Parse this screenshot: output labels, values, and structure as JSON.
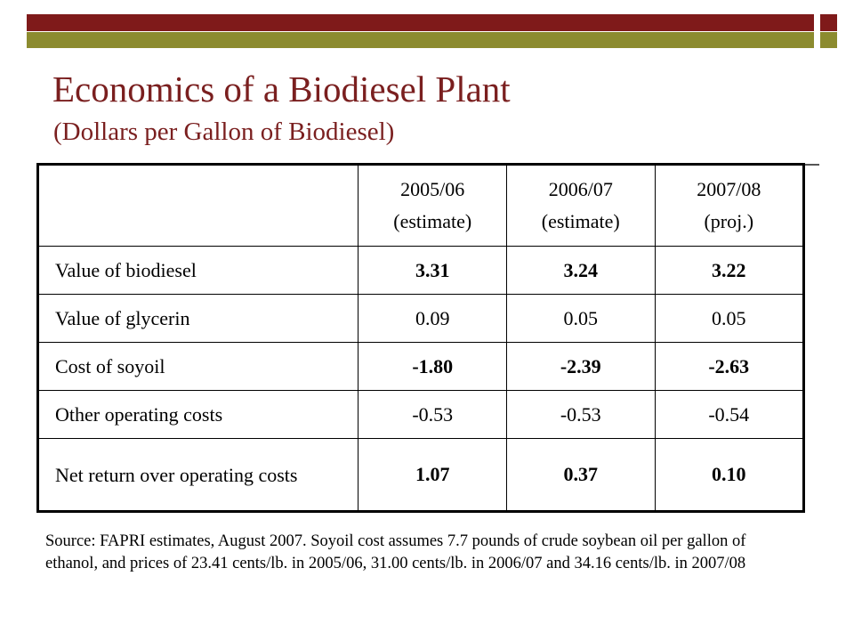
{
  "colors": {
    "maroon": "#7f1a1a",
    "olive": "#8c8b2f",
    "title": "#7a1f1f"
  },
  "title": "Economics of a Biodiesel Plant",
  "subtitle": "(Dollars per Gallon of Biodiesel)",
  "table": {
    "headers": [
      {
        "line1": "2005/06",
        "line2": "(estimate)"
      },
      {
        "line1": "2006/07",
        "line2": "(estimate)"
      },
      {
        "line1": "2007/08",
        "line2": "(proj.)"
      }
    ],
    "rows": [
      {
        "label": "Value of biodiesel",
        "values": [
          "3.31",
          "3.24",
          "3.22"
        ],
        "bold": true
      },
      {
        "label": "Value of glycerin",
        "values": [
          "0.09",
          "0.05",
          "0.05"
        ],
        "bold": false
      },
      {
        "label": "Cost of soyoil",
        "values": [
          "-1.80",
          "-2.39",
          "-2.63"
        ],
        "bold": true
      },
      {
        "label": "Other operating costs",
        "values": [
          "-0.53",
          "-0.53",
          "-0.54"
        ],
        "bold": false
      },
      {
        "label": "Net return over operating costs",
        "values": [
          "1.07",
          "0.37",
          "0.10"
        ],
        "bold": true
      }
    ]
  },
  "source": "Source: FAPRI estimates, August 2007. Soyoil cost assumes 7.7 pounds of crude soybean oil per gallon of ethanol, and prices of 23.41 cents/lb. in 2005/06, 31.00 cents/lb. in 2006/07 and 34.16 cents/lb. in 2007/08"
}
